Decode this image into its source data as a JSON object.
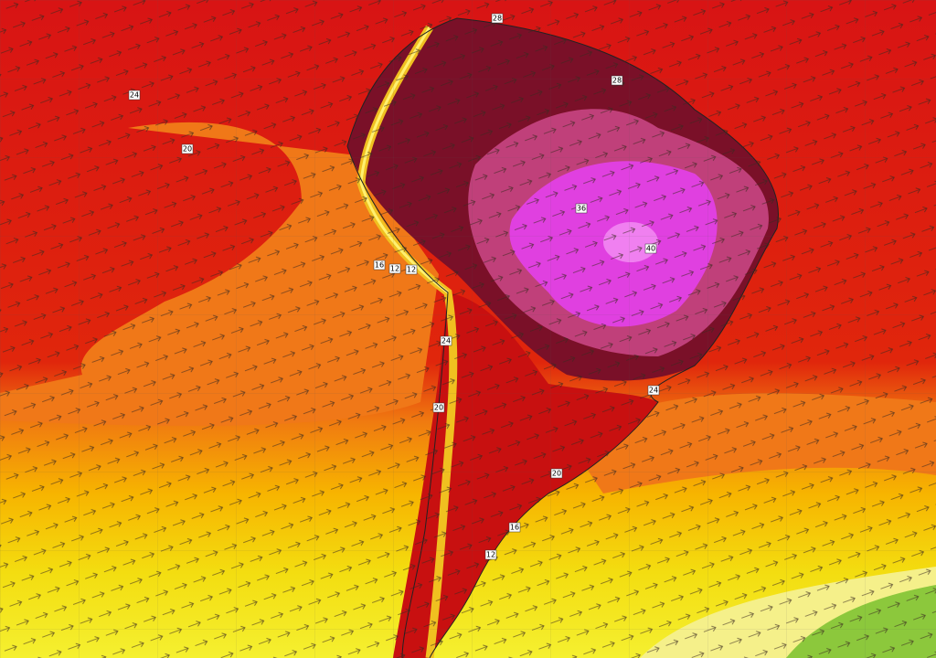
{
  "map": {
    "contour_labels": [
      "24",
      "20",
      "28",
      "28",
      "36",
      "40",
      "16",
      "12",
      "12",
      "24",
      "20",
      "24",
      "20",
      "16",
      "12"
    ]
  }
}
